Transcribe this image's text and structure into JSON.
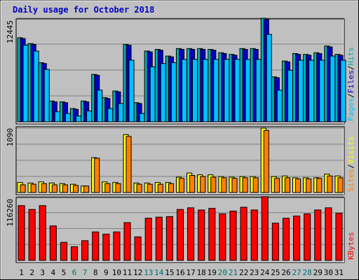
{
  "colors": {
    "background": "#c0c0c0",
    "frame": "#000000",
    "title": "#0000c0",
    "weekday_label": "#000000",
    "weekend_label": "#007070",
    "hits": "#00b0b0",
    "files": "#0000c0",
    "pages": "#00c0ff",
    "sites": "#ff8000",
    "visits": "#ffff00",
    "kbytes": "#ff0000"
  },
  "chart_data": {
    "type": "bar",
    "title": "Daily usage for October 2018",
    "categories": [
      "1",
      "2",
      "3",
      "4",
      "5",
      "6",
      "7",
      "8",
      "9",
      "10",
      "11",
      "12",
      "13",
      "14",
      "15",
      "16",
      "17",
      "18",
      "19",
      "20",
      "21",
      "22",
      "23",
      "24",
      "25",
      "26",
      "27",
      "28",
      "29",
      "30",
      "31"
    ],
    "weekend_days": [
      "6",
      "7",
      "13",
      "14",
      "20",
      "21",
      "27",
      "28"
    ],
    "panels": [
      {
        "name": "hits-files-pages",
        "ymax_label": "12445",
        "ylim": [
          0,
          12445
        ],
        "legend": [
          "Pages",
          "Files",
          "Hits"
        ],
        "grid": true,
        "series": [
          {
            "name": "Hits",
            "values": [
              10100,
              9400,
              7100,
              2500,
              2400,
              1600,
              2500,
              5700,
              2900,
              3700,
              9300,
              2300,
              8500,
              8700,
              7900,
              8800,
              8800,
              8800,
              8700,
              8300,
              8100,
              8800,
              8800,
              12445,
              5400,
              7300,
              8200,
              8100,
              8300,
              9100,
              8100
            ]
          },
          {
            "name": "Files",
            "values": [
              10000,
              9300,
              7000,
              2400,
              2300,
              1500,
              2400,
              5600,
              2800,
              3600,
              9200,
              2200,
              8400,
              8600,
              7800,
              8700,
              8700,
              8700,
              8600,
              8200,
              8000,
              8700,
              8700,
              12300,
              5300,
              7200,
              8100,
              8000,
              8200,
              9000,
              8000
            ]
          },
          {
            "name": "Pages",
            "values": [
              9200,
              8500,
              6300,
              1200,
              1000,
              700,
              1300,
              3800,
              1600,
              2200,
              7400,
              1000,
              6600,
              7000,
              7100,
              7500,
              7500,
              7500,
              7500,
              7500,
              7500,
              7500,
              7500,
              10500,
              3800,
              6200,
              7400,
              7400,
              7400,
              7900,
              7400
            ]
          }
        ]
      },
      {
        "name": "sites-visits",
        "ymax_label": "1090",
        "ylim": [
          0,
          1090
        ],
        "legend": [
          "Sites",
          "Visits"
        ],
        "grid": true,
        "series": [
          {
            "name": "Visits",
            "values": [
              170,
              160,
              180,
              160,
              150,
              140,
              110,
              590,
              180,
              170,
              980,
              160,
              160,
              170,
              170,
              260,
              330,
              300,
              300,
              270,
              260,
              270,
              270,
              1090,
              270,
              280,
              250,
              250,
              250,
              310,
              280
            ]
          },
          {
            "name": "Sites",
            "values": [
              130,
              140,
              150,
              130,
              130,
              120,
              110,
              580,
              150,
              150,
              950,
              140,
              140,
              140,
              150,
              240,
              290,
              270,
              260,
              250,
              240,
              250,
              250,
              1050,
              240,
              250,
              230,
              230,
              240,
              280,
              250
            ]
          }
        ]
      },
      {
        "name": "kbytes",
        "ymax_label": "116260",
        "ylim": [
          0,
          116260
        ],
        "legend": [
          "KBytes"
        ],
        "grid": true,
        "series": [
          {
            "name": "KBytes",
            "values": [
              100000,
              93000,
              100000,
              63000,
              33000,
              25000,
              36000,
              52000,
              48000,
              52000,
              69000,
              43000,
              77000,
              79000,
              80000,
              93000,
              96000,
              92000,
              95000,
              85000,
              90000,
              97000,
              92000,
              116260,
              68000,
              77000,
              81000,
              85000,
              92000,
              96000,
              86000
            ]
          }
        ]
      }
    ]
  }
}
